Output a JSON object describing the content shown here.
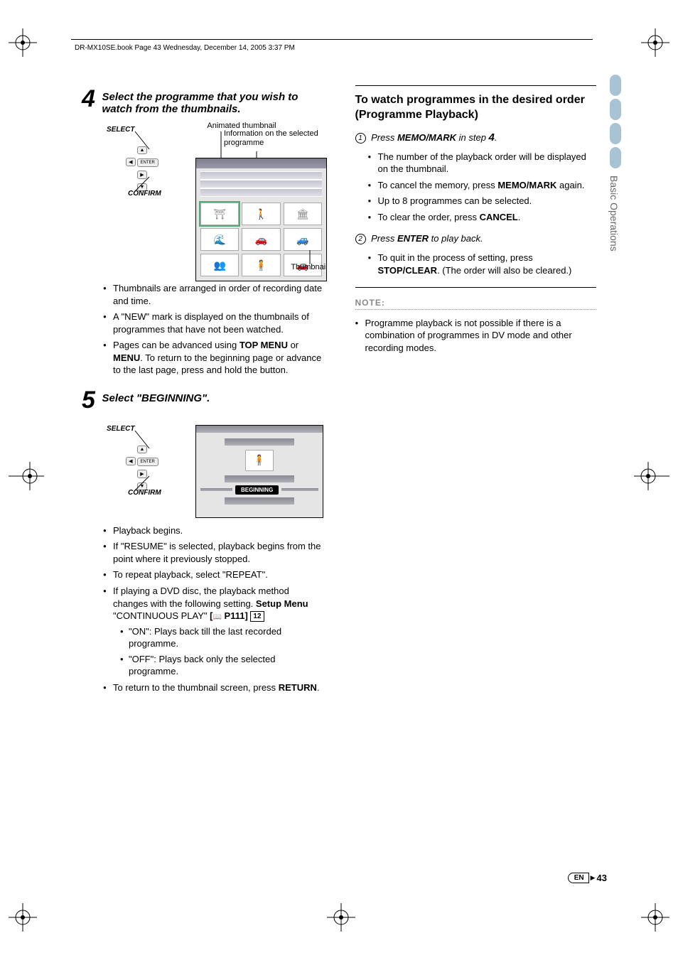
{
  "header_text": "DR-MX10SE.book  Page 43  Wednesday, December 14, 2005  3:37 PM",
  "side_tab": "Basic Operations",
  "footer": {
    "lang": "EN",
    "page": "43"
  },
  "step4": {
    "num": "4",
    "title": "Select the programme that you wish to watch from the thumbnails.",
    "select": "SELECT",
    "confirm": "CONFIRM",
    "annot_anim": "Animated thumbnail",
    "annot_info": "Information on the selected programme",
    "annot_thumb": "Thumbnail",
    "bullets": [
      "Thumbnails are arranged in order of recording date and time.",
      "A \"NEW\" mark is displayed on the thumbnails of programmes that have not been watched.",
      "Pages can be advanced using <b>TOP MENU</b> or <b>MENU</b>. To return to the beginning page or advance to the last page, press and hold the button."
    ]
  },
  "step5": {
    "num": "5",
    "title": "Select \"BEGINNING\".",
    "select": "SELECT",
    "confirm": "CONFIRM",
    "beginning": "BEGINNING",
    "bullets": [
      "Playback begins.",
      "If \"RESUME\" is selected, playback begins from the point where it previously stopped.",
      "To repeat playback, select \"REPEAT\".",
      "If playing a DVD disc, the playback method changes with the following setting. <b>Setup Menu</b> \"CONTINUOUS PLAY\" <b>[<span class='book-icon'>📖</span> P111]</b> <span class='ref-box'>12</span>",
      "To return to the thumbnail screen, press <b>RETURN</b>."
    ],
    "subs": [
      "\"ON\": Plays back till the last recorded programme.",
      "\"OFF\": Plays back only the selected programme."
    ]
  },
  "right": {
    "title": "To watch programmes in the desired order (Programme Playback)",
    "s1_pre": "Press ",
    "s1_bold": "MEMO/MARK",
    "s1_post": " in step ",
    "s1_step": "4",
    "s1_end": ".",
    "s1_bullets": [
      "The number of the playback order will be displayed on the thumbnail.",
      "To cancel the memory, press <b>MEMO/MARK</b> again.",
      "Up to 8 programmes can be selected.",
      "To clear the order, press <b>CANCEL</b>."
    ],
    "s2_pre": "Press ",
    "s2_bold": "ENTER",
    "s2_post": " to play back.",
    "s2_bullets": [
      "To quit in the process of setting, press <b>STOP/CLEAR</b>. (The order will also be cleared.)"
    ],
    "note_hdr": "NOTE:",
    "note_bullet": "Programme playback is not possible if there is a combination of programmes in DV mode and other recording modes."
  },
  "remote": {
    "enter": "ENTER"
  }
}
